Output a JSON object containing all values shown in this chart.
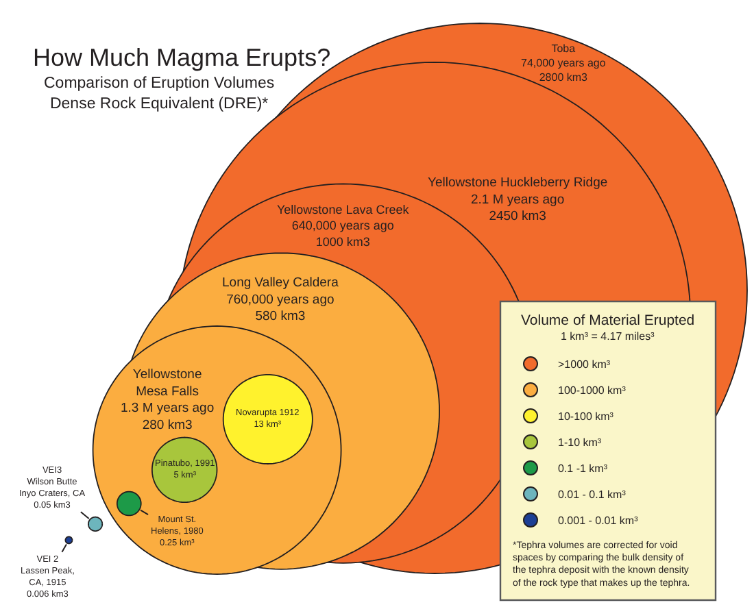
{
  "chart_data": {
    "type": "other",
    "title": "How Much Magma Erupts?",
    "subtitle": "Comparison of Eruption Volumes\nDense Rock Equivalent (DRE)*",
    "legend_title": "Volume of Material Erupted",
    "legend": "bottom right",
    "categories": [
      "Toba\n74,000 years ago",
      "Yellowstone Huckleberry Ridge\n2.1 M years ago",
      "Yellowstone Lava Creek\n640,000 years ago",
      "Long Valley Caldera\n760,000 years ago",
      "Yellowstone\nMesa Falls\n1.3 M years ago",
      "Novarupta 1912",
      "Pinatubo, 1991",
      "Mount St.\nHelens, 1980",
      "VEI3\nWilson Butte\nInyo Craters, CA",
      "VEI 2\nLassen Peak,\nCA, 1915"
    ],
    "series": [
      {
        "name": ">1000 km³",
        "color": "#f26b2c",
        "values": [
          2800,
          2450,
          1000,
          null,
          null,
          null,
          null,
          null,
          null,
          null
        ],
        "value_labels": [
          "2800 km3",
          "2450 km3",
          "1000 km3",
          null,
          null,
          null,
          null,
          null,
          null,
          null
        ]
      },
      {
        "name": "100-1000 km³",
        "color": "#fbad40",
        "values": [
          null,
          null,
          null,
          580,
          280,
          null,
          null,
          null,
          null,
          null
        ],
        "value_labels": [
          null,
          null,
          null,
          "580 km3",
          "280 km3",
          null,
          null,
          null,
          null,
          null
        ]
      },
      {
        "name": "10-100 km³",
        "color": "#fff22d",
        "values": [
          null,
          null,
          null,
          null,
          null,
          13,
          null,
          null,
          null,
          null
        ],
        "value_labels": [
          null,
          null,
          null,
          null,
          null,
          "13 km³",
          null,
          null,
          null,
          null
        ]
      },
      {
        "name": "1-10 km³",
        "color": "#a8c63c",
        "values": [
          null,
          null,
          null,
          null,
          null,
          null,
          5,
          null,
          null,
          null
        ],
        "value_labels": [
          null,
          null,
          null,
          null,
          null,
          null,
          "5 km³",
          null,
          null,
          null
        ]
      },
      {
        "name": "0.1 -1 km³",
        "color": "#1d9a48",
        "values": [
          null,
          null,
          null,
          null,
          null,
          null,
          null,
          0.25,
          null,
          null
        ],
        "value_labels": [
          null,
          null,
          null,
          null,
          null,
          null,
          null,
          "0.25 km³",
          null,
          null
        ]
      },
      {
        "name": "0.01 - 0.1 km³",
        "color": "#6db5bd",
        "values": [
          null,
          null,
          null,
          null,
          null,
          null,
          null,
          null,
          0.05,
          null
        ],
        "value_labels": [
          null,
          null,
          null,
          null,
          null,
          null,
          null,
          null,
          "0.05 km3",
          null
        ]
      },
      {
        "name": "0.001 - 0.01 km³",
        "color": "#1c3f94",
        "values": [
          null,
          null,
          null,
          null,
          null,
          null,
          null,
          null,
          null,
          0.006
        ],
        "value_labels": [
          null,
          null,
          null,
          null,
          null,
          null,
          null,
          null,
          null,
          "0.006 km3"
        ]
      }
    ],
    "annotations": [
      "1 km³ = 4.17 miles³",
      "*Tephra volumes are corrected for void spaces by comparing the bulk density of the tephra deposit with the known density of the rock type that makes up the tephra."
    ]
  }
}
